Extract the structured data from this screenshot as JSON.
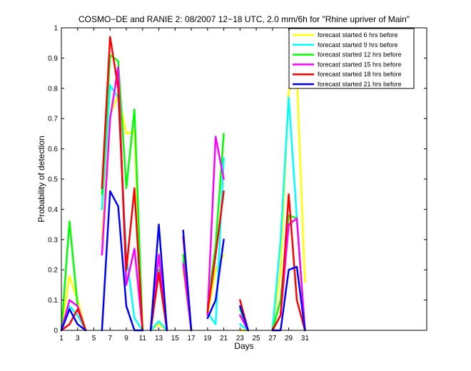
{
  "chart_data": {
    "type": "line",
    "title": "COSMO−DE and RANIE 2: 08/2007 12−18 UTC, 2.0 mm/6h for \"Rhine upriver of Main\"",
    "xlabel": "Days",
    "ylabel": "Probability of detection",
    "xlim": [
      1,
      46
    ],
    "ylim": [
      0,
      1
    ],
    "xticks": [
      1,
      3,
      5,
      7,
      9,
      11,
      13,
      15,
      17,
      19,
      21,
      23,
      25,
      27,
      29,
      31
    ],
    "yticks": [
      0,
      0.1,
      0.2,
      0.3,
      0.4,
      0.5,
      0.6,
      0.7,
      0.8,
      0.9,
      1
    ],
    "legend_position": "top-right",
    "grid": false,
    "series": [
      {
        "name": "forecast started 6 hrs before",
        "color": "#ffff00",
        "points": [
          [
            1,
            0.0
          ],
          [
            2,
            0.18
          ],
          [
            3,
            0.1
          ],
          [
            4,
            0.0
          ],
          [
            null,
            null
          ],
          [
            6,
            0.3
          ],
          [
            7,
            0.71
          ],
          [
            8,
            0.78
          ],
          [
            9,
            0.65
          ],
          [
            10,
            0.66
          ],
          [
            11,
            0.0
          ],
          [
            null,
            null
          ],
          [
            12,
            0.0
          ],
          [
            13,
            0.02
          ],
          [
            14,
            0.0
          ],
          [
            null,
            null
          ],
          [
            16,
            0.2
          ],
          [
            17,
            0.0
          ],
          [
            null,
            null
          ],
          [
            19,
            0.05
          ],
          [
            20,
            0.2
          ],
          [
            21,
            0.25
          ],
          [
            null,
            null
          ],
          [
            23,
            0.0
          ],
          [
            24,
            0.0
          ],
          [
            null,
            null
          ],
          [
            27,
            0.0
          ],
          [
            28,
            0.2
          ],
          [
            29,
            0.79
          ],
          [
            30,
            0.84
          ],
          [
            31,
            0.16
          ]
        ]
      },
      {
        "name": "forecast started 9 hrs before",
        "color": "#00ffff",
        "points": [
          [
            1,
            0.0
          ],
          [
            2,
            0.08
          ],
          [
            3,
            0.05
          ],
          [
            4,
            0.0
          ],
          [
            null,
            null
          ],
          [
            6,
            0.4
          ],
          [
            7,
            0.81
          ],
          [
            8,
            0.77
          ],
          [
            9,
            0.25
          ],
          [
            10,
            0.04
          ],
          [
            11,
            0.0
          ],
          [
            null,
            null
          ],
          [
            12,
            0.0
          ],
          [
            13,
            0.03
          ],
          [
            14,
            0.0
          ],
          [
            null,
            null
          ],
          [
            16,
            0.23
          ],
          [
            17,
            0.0
          ],
          [
            null,
            null
          ],
          [
            19,
            0.06
          ],
          [
            20,
            0.02
          ],
          [
            21,
            0.57
          ],
          [
            null,
            null
          ],
          [
            23,
            0.02
          ],
          [
            24,
            0.0
          ],
          [
            null,
            null
          ],
          [
            27,
            0.0
          ],
          [
            28,
            0.3
          ],
          [
            29,
            0.77
          ],
          [
            30,
            0.37
          ],
          [
            31,
            0.0
          ]
        ]
      },
      {
        "name": "forecast started 12 hrs before",
        "color": "#00ff00",
        "points": [
          [
            1,
            0.0
          ],
          [
            2,
            0.36
          ],
          [
            3,
            0.08
          ],
          [
            4,
            0.0
          ],
          [
            null,
            null
          ],
          [
            6,
            0.45
          ],
          [
            7,
            0.91
          ],
          [
            8,
            0.89
          ],
          [
            9,
            0.47
          ],
          [
            10,
            0.73
          ],
          [
            11,
            0.0
          ],
          [
            null,
            null
          ],
          [
            12,
            0.0
          ],
          [
            13,
            0.2
          ],
          [
            14,
            0.0
          ],
          [
            null,
            null
          ],
          [
            16,
            0.25
          ],
          [
            17,
            0.0
          ],
          [
            null,
            null
          ],
          [
            19,
            0.08
          ],
          [
            20,
            0.28
          ],
          [
            21,
            0.65
          ],
          [
            null,
            null
          ],
          [
            23,
            0.07
          ],
          [
            24,
            0.0
          ],
          [
            null,
            null
          ],
          [
            27,
            0.0
          ],
          [
            28,
            0.1
          ],
          [
            29,
            0.38
          ],
          [
            30,
            0.37
          ],
          [
            31,
            0.0
          ]
        ]
      },
      {
        "name": "forecast started 15 hrs before",
        "color": "#ff00ff",
        "points": [
          [
            1,
            0.0
          ],
          [
            2,
            0.1
          ],
          [
            3,
            0.08
          ],
          [
            4,
            0.0
          ],
          [
            null,
            null
          ],
          [
            6,
            0.25
          ],
          [
            7,
            0.7
          ],
          [
            8,
            0.87
          ],
          [
            9,
            0.15
          ],
          [
            10,
            0.27
          ],
          [
            11,
            0.0
          ],
          [
            null,
            null
          ],
          [
            12,
            0.0
          ],
          [
            13,
            0.25
          ],
          [
            14,
            0.0
          ],
          [
            null,
            null
          ],
          [
            16,
            0.22
          ],
          [
            17,
            0.0
          ],
          [
            null,
            null
          ],
          [
            19,
            0.05
          ],
          [
            20,
            0.64
          ],
          [
            21,
            0.5
          ],
          [
            null,
            null
          ],
          [
            23,
            0.05
          ],
          [
            24,
            0.0
          ],
          [
            null,
            null
          ],
          [
            27,
            0.0
          ],
          [
            28,
            0.05
          ],
          [
            29,
            0.35
          ],
          [
            30,
            0.37
          ],
          [
            31,
            0.0
          ]
        ]
      },
      {
        "name": "forecast started 18 hrs before",
        "color": "#ff0000",
        "points": [
          [
            1,
            0.0
          ],
          [
            2,
            0.02
          ],
          [
            3,
            0.07
          ],
          [
            4,
            0.0
          ],
          [
            null,
            null
          ],
          [
            6,
            0.47
          ],
          [
            7,
            0.97
          ],
          [
            8,
            0.8
          ],
          [
            9,
            0.2
          ],
          [
            10,
            0.47
          ],
          [
            11,
            0.0
          ],
          [
            null,
            null
          ],
          [
            12,
            0.0
          ],
          [
            13,
            0.19
          ],
          [
            14,
            0.0
          ],
          [
            null,
            null
          ],
          [
            16,
            0.31
          ],
          [
            17,
            0.0
          ],
          [
            null,
            null
          ],
          [
            19,
            0.06
          ],
          [
            20,
            0.25
          ],
          [
            21,
            0.46
          ],
          [
            null,
            null
          ],
          [
            23,
            0.1
          ],
          [
            24,
            0.0
          ],
          [
            null,
            null
          ],
          [
            27,
            0.0
          ],
          [
            28,
            0.05
          ],
          [
            29,
            0.45
          ],
          [
            30,
            0.1
          ],
          [
            31,
            0.0
          ]
        ]
      },
      {
        "name": "forecast started 21 hrs before",
        "color": "#0000ff",
        "points": [
          [
            1,
            0.0
          ],
          [
            2,
            0.07
          ],
          [
            3,
            0.02
          ],
          [
            4,
            0.0
          ],
          [
            null,
            null
          ],
          [
            6,
            0.0
          ],
          [
            7,
            0.46
          ],
          [
            8,
            0.41
          ],
          [
            9,
            0.08
          ],
          [
            10,
            0.0
          ],
          [
            11,
            0.0
          ],
          [
            null,
            null
          ],
          [
            12,
            0.0
          ],
          [
            13,
            0.35
          ],
          [
            14,
            0.0
          ],
          [
            null,
            null
          ],
          [
            16,
            0.33
          ],
          [
            17,
            0.0
          ],
          [
            null,
            null
          ],
          [
            19,
            0.04
          ],
          [
            20,
            0.1
          ],
          [
            21,
            0.3
          ],
          [
            null,
            null
          ],
          [
            23,
            0.08
          ],
          [
            24,
            0.0
          ],
          [
            null,
            null
          ],
          [
            27,
            0.0
          ],
          [
            28,
            0.0
          ],
          [
            29,
            0.2
          ],
          [
            30,
            0.21
          ],
          [
            31,
            0.0
          ]
        ]
      }
    ]
  }
}
